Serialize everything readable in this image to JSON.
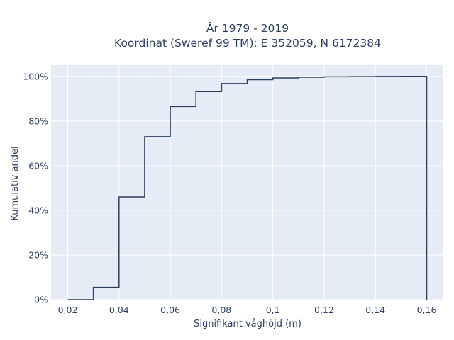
{
  "chart_data": {
    "type": "line",
    "line_shape": "step",
    "title_lines": [
      "År 1979 - 2019",
      "Koordinat (Sweref 99 TM): E 352059, N 6172384"
    ],
    "xlabel": "Signifikant våghöjd (m)",
    "ylabel": "Kumulativ andel",
    "xlim": [
      0.0135,
      0.1665
    ],
    "ylim": [
      0,
      1.05
    ],
    "x_ticks": [
      0.02,
      0.04,
      0.06,
      0.08,
      0.1,
      0.12,
      0.14,
      0.16
    ],
    "x_tick_labels": [
      "0,02",
      "0,04",
      "0,06",
      "0,08",
      "0,1",
      "0,12",
      "0,14",
      "0,16"
    ],
    "y_ticks": [
      0,
      0.2,
      0.4,
      0.6,
      0.8,
      1.0
    ],
    "y_tick_labels": [
      "0%",
      "20%",
      "40%",
      "60%",
      "80%",
      "100%"
    ],
    "grid": true,
    "colors": {
      "plot_background": "#e5ecf6",
      "grid": "#ffffff",
      "line": "#2a3f5f"
    },
    "series": [
      {
        "x": [
          0.02,
          0.03,
          0.04,
          0.05,
          0.06,
          0.07,
          0.08,
          0.09,
          0.1,
          0.11,
          0.12,
          0.13,
          0.14,
          0.15,
          0.16
        ],
        "y": [
          0.0,
          0.055,
          0.46,
          0.73,
          0.865,
          0.932,
          0.968,
          0.985,
          0.993,
          0.996,
          0.998,
          0.999,
          0.9995,
          1.0,
          1.0
        ]
      }
    ]
  }
}
